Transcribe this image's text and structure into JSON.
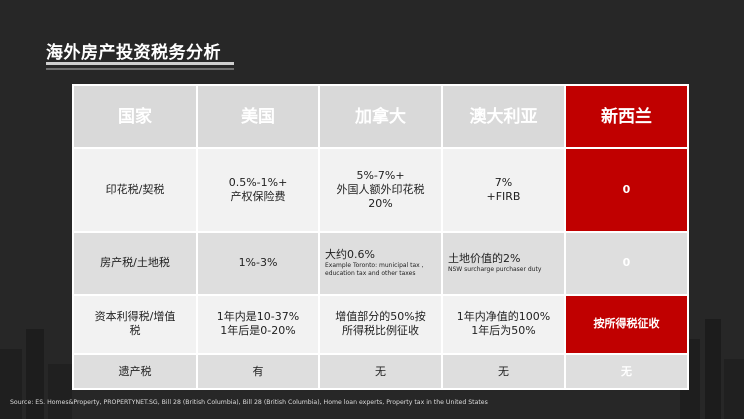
{
  "title": "海外房产投资税务分析",
  "table": {
    "headers": [
      "国家",
      "美国",
      "加拿大",
      "澳大利亚",
      "新西兰"
    ],
    "rows": [
      {
        "label": "印花税/契税",
        "usa": [
          "0.5%-1%+",
          "产权保险费"
        ],
        "canada": [
          "5%-7%+",
          "外国人额外印花税",
          "20%"
        ],
        "australia": [
          "7%",
          "+FIRB"
        ],
        "nz": "0"
      },
      {
        "label": "房产税/土地税",
        "usa": "1%-3%",
        "canada_main": "大约0.6%",
        "canada_note": [
          "Example Toronto: municipal tax ,",
          "education tax and other taxes"
        ],
        "australia_main": "土地价值的2%",
        "australia_note": "NSW surcharge purchaser duty",
        "nz": "0"
      },
      {
        "label": [
          "资本利得税/增值",
          "税"
        ],
        "usa": [
          "1年内是10-37%",
          "1年后是0-20%"
        ],
        "canada": [
          "增值部分的50%按",
          "所得税比例征收"
        ],
        "australia": [
          "1年内净值的100%",
          "1年后为50%"
        ],
        "nz": "按所得税征收"
      },
      {
        "label": "遗产税",
        "usa": "有",
        "canada": "无",
        "australia": "无",
        "nz": "无"
      }
    ]
  },
  "source": "Source: ES. Homes&Property, PROPERTYNET.SG, Bill 28 (British Columbia), Bill 28 (British Columbia), Home loan experts, Property tax in the United States",
  "colors": {
    "background": "#272727",
    "highlight": "#c00000",
    "header": "#d9d9d9"
  }
}
